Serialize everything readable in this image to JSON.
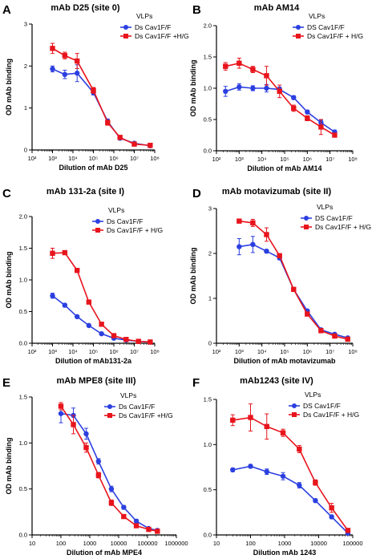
{
  "colors": {
    "series1": "#2b3fe0",
    "series2": "#e8141c",
    "axis": "#000000"
  },
  "chart_data": [
    {
      "type": "line",
      "panel": "A",
      "title": "mAb D25  (site 0)",
      "xlabel": "Dilution of mAb D25",
      "ylabel": "OD mAb binding",
      "xscale": "log",
      "xlim": [
        100,
        100000000
      ],
      "ylim": [
        0,
        3
      ],
      "xticks": [
        "10²",
        "10³",
        "10⁴",
        "10⁵",
        "10⁶",
        "10⁷",
        "10⁸"
      ],
      "yticks": [
        "0",
        "1",
        "2",
        "3"
      ],
      "legend_title": "VLPs",
      "legend_position": "top-right",
      "series": [
        {
          "name": "Ds Cav1F/F",
          "marker": "circle",
          "x": [
            1000,
            4000,
            16000,
            100000,
            500000,
            2000000,
            10000000,
            60000000
          ],
          "y": [
            1.93,
            1.8,
            1.83,
            1.37,
            0.68,
            0.28,
            0.16,
            0.1
          ],
          "err": [
            0.07,
            0.1,
            0.2,
            0.06,
            0.06,
            0.03,
            0.03,
            0.02
          ]
        },
        {
          "name": "Ds Cav1F/F +H/G",
          "marker": "square",
          "x": [
            1000,
            4000,
            16000,
            100000,
            500000,
            2000000,
            10000000,
            60000000
          ],
          "y": [
            2.42,
            2.25,
            2.12,
            1.42,
            0.65,
            0.3,
            0.14,
            0.11
          ],
          "err": [
            0.12,
            0.08,
            0.18,
            0.07,
            0.06,
            0.03,
            0.03,
            0.02
          ]
        }
      ]
    },
    {
      "type": "line",
      "panel": "B",
      "title": "mAb AM14",
      "xlabel": "Dilution of mAb AM14",
      "ylabel": "OD mAb binding",
      "xscale": "log",
      "xlim": [
        100,
        100000000
      ],
      "ylim": [
        0,
        2
      ],
      "xticks": [
        "10²",
        "10³",
        "10⁴",
        "10⁵",
        "10⁶",
        "10⁷",
        "10⁸"
      ],
      "yticks": [
        "0.0",
        "0.5",
        "1.0",
        "1.5",
        "2.0"
      ],
      "legend_title": "VLPs",
      "legend_position": "top-right",
      "series": [
        {
          "name": "DS Cav1F/F",
          "marker": "circle",
          "x": [
            250,
            1000,
            4000,
            16000,
            60000,
            250000,
            1000000,
            4000000,
            16000000
          ],
          "y": [
            0.95,
            1.02,
            1.0,
            1.0,
            0.98,
            0.85,
            0.62,
            0.45,
            0.3
          ],
          "err": [
            0.08,
            0.05,
            0.04,
            0.06,
            0.04,
            0.03,
            0.03,
            0.04,
            0.03
          ]
        },
        {
          "name": "Ds Cav1F/F + H/G",
          "marker": "square",
          "x": [
            250,
            1000,
            4000,
            16000,
            60000,
            250000,
            1000000,
            4000000,
            16000000
          ],
          "y": [
            1.35,
            1.4,
            1.3,
            1.2,
            0.95,
            0.68,
            0.52,
            0.38,
            0.25
          ],
          "err": [
            0.06,
            0.08,
            0.05,
            0.15,
            0.1,
            0.05,
            0.04,
            0.12,
            0.03
          ]
        }
      ]
    },
    {
      "type": "line",
      "panel": "C",
      "title": "mAb 131-2a (site I)",
      "xlabel": "Dilution of mAb131-2a",
      "ylabel": "OD mAb binding",
      "xscale": "log",
      "xlim": [
        100,
        100000000
      ],
      "ylim": [
        0,
        2
      ],
      "xticks": [
        "10²",
        "10³",
        "10⁴",
        "10⁵",
        "10⁶",
        "10⁷",
        "10⁸"
      ],
      "yticks": [
        "0.0",
        "0.5",
        "1.0",
        "1.5",
        "2.0"
      ],
      "legend_title": "VLPs",
      "legend_position": "top-right",
      "series": [
        {
          "name": "Ds Cav1F/F",
          "marker": "circle",
          "x": [
            1000,
            4000,
            16000,
            60000,
            250000,
            1000000,
            4000000,
            16000000,
            60000000
          ],
          "y": [
            0.75,
            0.6,
            0.42,
            0.28,
            0.15,
            0.08,
            0.05,
            0.03,
            0.02
          ],
          "err": [
            0.04,
            0.03,
            0.02,
            0.02,
            0.02,
            0.01,
            0.01,
            0.01,
            0.01
          ]
        },
        {
          "name": "Ds Cav1F/F + H/G",
          "marker": "square",
          "x": [
            1000,
            4000,
            16000,
            60000,
            250000,
            1000000,
            4000000,
            16000000,
            60000000
          ],
          "y": [
            1.42,
            1.43,
            1.15,
            0.65,
            0.3,
            0.12,
            0.06,
            0.03,
            0.02
          ],
          "err": [
            0.08,
            0.03,
            0.03,
            0.03,
            0.02,
            0.01,
            0.01,
            0.01,
            0.01
          ]
        }
      ]
    },
    {
      "type": "line",
      "panel": "D",
      "title": "mAb motavizumab (site II)",
      "xlabel": "Dilution of mAb motavizumab",
      "ylabel": "OD mAb binding",
      "xscale": "log",
      "xlim": [
        100,
        100000000
      ],
      "ylim": [
        0,
        3
      ],
      "xticks": [
        "10²",
        "10³",
        "10⁴",
        "10⁵",
        "10⁶",
        "10⁷",
        "10⁸"
      ],
      "yticks": [
        "0",
        "1",
        "2",
        "3"
      ],
      "legend_title": "VLPs",
      "legend_position": "top-right",
      "series": [
        {
          "name": "DS Cav1F/F",
          "marker": "circle",
          "x": [
            1000,
            4000,
            16000,
            60000,
            250000,
            1000000,
            4000000,
            16000000,
            60000000
          ],
          "y": [
            2.15,
            2.2,
            2.05,
            1.9,
            1.2,
            0.72,
            0.3,
            0.2,
            0.12
          ],
          "err": [
            0.18,
            0.18,
            0.04,
            0.04,
            0.04,
            0.03,
            0.02,
            0.02,
            0.02
          ]
        },
        {
          "name": "Ds Cav1F/F + H/G",
          "marker": "square",
          "x": [
            1000,
            4000,
            16000,
            60000,
            250000,
            1000000,
            4000000,
            16000000,
            60000000
          ],
          "y": [
            2.72,
            2.68,
            2.42,
            1.95,
            1.2,
            0.65,
            0.28,
            0.16,
            0.09
          ],
          "err": [
            0.03,
            0.08,
            0.15,
            0.04,
            0.04,
            0.03,
            0.02,
            0.02,
            0.02
          ]
        }
      ]
    },
    {
      "type": "line",
      "panel": "E",
      "title": "mAb MPE8 (site III)",
      "xlabel": "Dilution of mAb MPE4",
      "ylabel": "OD mAb binding",
      "xscale": "log",
      "xlim": [
        10,
        1000000
      ],
      "ylim": [
        0,
        1.5
      ],
      "xticks": [
        "10",
        "100",
        "1000",
        "10000",
        "100000",
        "1000000"
      ],
      "yticks": [
        "0.0",
        "0.5",
        "1.0",
        "1.5"
      ],
      "legend_title": "VLPs",
      "legend_position": "top-right",
      "series": [
        {
          "name": "Ds Cav1F/F",
          "marker": "circle",
          "x": [
            100,
            270,
            750,
            2000,
            5600,
            15000,
            41000,
            110000,
            220000
          ],
          "y": [
            1.32,
            1.3,
            1.1,
            0.8,
            0.5,
            0.3,
            0.15,
            0.07,
            0.05
          ],
          "err": [
            0.1,
            0.08,
            0.06,
            0.03,
            0.03,
            0.02,
            0.02,
            0.01,
            0.01
          ]
        },
        {
          "name": "Ds Cav1F/F +H/G",
          "marker": "square",
          "x": [
            100,
            270,
            750,
            2000,
            5600,
            15000,
            41000,
            110000,
            220000
          ],
          "y": [
            1.4,
            1.2,
            0.95,
            0.65,
            0.35,
            0.2,
            0.1,
            0.06,
            0.04
          ],
          "err": [
            0.04,
            0.1,
            0.05,
            0.03,
            0.03,
            0.02,
            0.01,
            0.01,
            0.01
          ]
        }
      ]
    },
    {
      "type": "line",
      "panel": "F",
      "title": "mAb1243        (site IV)",
      "xlabel": "Dilution mAb 1243",
      "ylabel": "",
      "xscale": "log",
      "xlim": [
        10,
        100000
      ],
      "ylim": [
        0,
        1.5
      ],
      "xticks": [
        "10",
        "100",
        "1000",
        "10000",
        "100000"
      ],
      "yticks": [
        "0.0",
        "0.5",
        "1.0",
        "1.5"
      ],
      "legend_title": "VLPs",
      "legend_position": "top-right",
      "series": [
        {
          "name": "DS Cav1F/F",
          "marker": "circle",
          "x": [
            30,
            100,
            300,
            900,
            2700,
            8000,
            24000,
            72000
          ],
          "y": [
            0.72,
            0.76,
            0.7,
            0.65,
            0.55,
            0.38,
            0.2,
            0.02
          ],
          "err": [
            0.02,
            0.02,
            0.03,
            0.04,
            0.03,
            0.02,
            0.02,
            0.01
          ]
        },
        {
          "name": "Ds Cav1F/F + H/G",
          "marker": "square",
          "x": [
            30,
            100,
            300,
            900,
            2700,
            8000,
            24000,
            72000
          ],
          "y": [
            1.27,
            1.3,
            1.2,
            1.13,
            0.95,
            0.58,
            0.3,
            0.05
          ],
          "err": [
            0.06,
            0.15,
            0.14,
            0.04,
            0.04,
            0.03,
            0.05,
            0.01
          ]
        }
      ]
    }
  ]
}
